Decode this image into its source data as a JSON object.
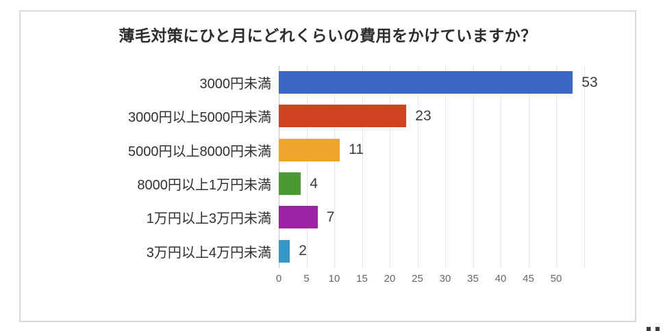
{
  "page": {
    "background": "#ffffff",
    "card_border_color": "#d9d9d9"
  },
  "chart_data": {
    "type": "bar",
    "orientation": "horizontal",
    "title": "薄毛対策にひと月にどれくらいの費用をかけていますか？",
    "categories": [
      "3000円未満",
      "3000円以上5000円未満",
      "5000円以上8000円未満",
      "8000円以上1万円未満",
      "1万円以上3万円未満",
      "3万円以上4万円未満"
    ],
    "values": [
      53,
      23,
      11,
      4,
      7,
      2
    ],
    "bar_colors": [
      "#3b67c6",
      "#d2411f",
      "#f0a32e",
      "#4a9a34",
      "#9c24a4",
      "#3498c7"
    ],
    "value_labels": [
      "53",
      "23",
      "11",
      "4",
      "7",
      "2"
    ],
    "xlabel": "",
    "ylabel": "",
    "xlim": [
      0,
      55
    ],
    "x_ticks": [
      0,
      5,
      10,
      15,
      20,
      25,
      30,
      35,
      40,
      45,
      50
    ],
    "gridline_values": [
      0,
      5,
      10,
      15,
      20,
      25,
      30,
      35,
      40,
      45,
      50,
      55
    ],
    "grid": true,
    "legend": "none",
    "title_color": "#2d2d2d",
    "label_color": "#303030",
    "value_label_color": "#3c3c3c",
    "tick_color": "#666666",
    "gridline_color": "#e9e9e9",
    "axis_line_color": "#c4c4c4"
  }
}
